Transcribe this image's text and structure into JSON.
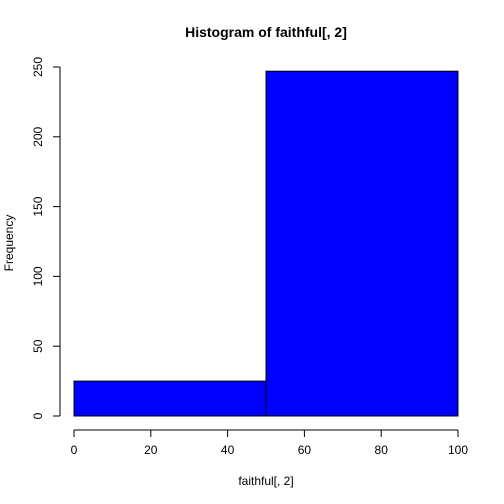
{
  "chart_data": {
    "type": "bar",
    "title": "Histogram of faithful[, 2]",
    "xlabel": "faithful[, 2]",
    "ylabel": "Frequency",
    "bins": [
      {
        "start": 0,
        "end": 50,
        "count": 25
      },
      {
        "start": 50,
        "end": 100,
        "count": 247
      }
    ],
    "xlim": [
      0,
      100
    ],
    "ylim": [
      0,
      250
    ],
    "xticks": [
      0,
      20,
      40,
      60,
      80,
      100
    ],
    "yticks": [
      0,
      50,
      100,
      150,
      200,
      250
    ],
    "bar_color": "#0000ff",
    "grid": false,
    "legend": "none"
  }
}
